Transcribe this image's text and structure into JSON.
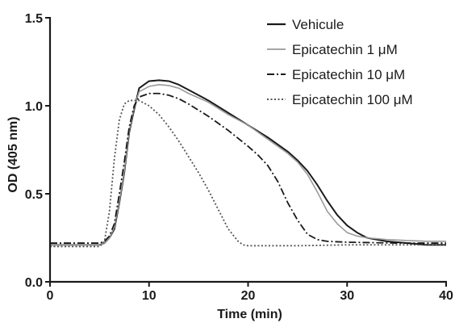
{
  "chart_data": {
    "type": "line",
    "xlabel": "Time (min)",
    "ylabel": "OD (405 nm)",
    "xlim": [
      0,
      40
    ],
    "ylim": [
      0.0,
      1.5
    ],
    "x_ticks": [
      0,
      10,
      20,
      30,
      40
    ],
    "y_ticks": [
      0.0,
      0.5,
      1.0,
      1.5
    ],
    "x_tick_labels": [
      "0",
      "10",
      "20",
      "30",
      "40"
    ],
    "y_tick_labels": [
      "0.0",
      "0.5",
      "1.0",
      "1.5"
    ],
    "grid": false,
    "legend_position": "top-right",
    "series": [
      {
        "name": "Vehicule",
        "color": "#1a1a1a",
        "dash": "solid",
        "width": 2.0,
        "points": [
          [
            0,
            0.21
          ],
          [
            5,
            0.21
          ],
          [
            5.5,
            0.22
          ],
          [
            6,
            0.25
          ],
          [
            6.5,
            0.3
          ],
          [
            7,
            0.45
          ],
          [
            7.5,
            0.62
          ],
          [
            8,
            0.85
          ],
          [
            8.5,
            0.98
          ],
          [
            9,
            1.1
          ],
          [
            10,
            1.14
          ],
          [
            11,
            1.145
          ],
          [
            12,
            1.14
          ],
          [
            13,
            1.12
          ],
          [
            14,
            1.09
          ],
          [
            16,
            1.03
          ],
          [
            18,
            0.96
          ],
          [
            20,
            0.89
          ],
          [
            22,
            0.82
          ],
          [
            24,
            0.74
          ],
          [
            25,
            0.69
          ],
          [
            26,
            0.63
          ],
          [
            27,
            0.55
          ],
          [
            28,
            0.46
          ],
          [
            29,
            0.38
          ],
          [
            30,
            0.32
          ],
          [
            31,
            0.28
          ],
          [
            32,
            0.25
          ],
          [
            34,
            0.23
          ],
          [
            36,
            0.22
          ],
          [
            38,
            0.21
          ],
          [
            40,
            0.21
          ]
        ]
      },
      {
        "name": "Epicatechin 1 μM",
        "color": "#9a9a9a",
        "dash": "solid",
        "width": 1.6,
        "points": [
          [
            0,
            0.21
          ],
          [
            5,
            0.21
          ],
          [
            5.5,
            0.22
          ],
          [
            6,
            0.25
          ],
          [
            6.5,
            0.31
          ],
          [
            7,
            0.46
          ],
          [
            7.5,
            0.63
          ],
          [
            8,
            0.86
          ],
          [
            8.5,
            0.99
          ],
          [
            9,
            1.08
          ],
          [
            10,
            1.11
          ],
          [
            11,
            1.12
          ],
          [
            12,
            1.115
          ],
          [
            13,
            1.1
          ],
          [
            14,
            1.07
          ],
          [
            16,
            1.02
          ],
          [
            18,
            0.95
          ],
          [
            20,
            0.89
          ],
          [
            22,
            0.81
          ],
          [
            24,
            0.73
          ],
          [
            25,
            0.68
          ],
          [
            26,
            0.61
          ],
          [
            27,
            0.51
          ],
          [
            28,
            0.4
          ],
          [
            29,
            0.33
          ],
          [
            30,
            0.28
          ],
          [
            31,
            0.26
          ],
          [
            32,
            0.25
          ],
          [
            34,
            0.24
          ],
          [
            36,
            0.235
          ],
          [
            38,
            0.23
          ],
          [
            40,
            0.23
          ]
        ]
      },
      {
        "name": "Epicatechin 10 μM",
        "color": "#1a1a1a",
        "dash": "dashdot",
        "width": 1.8,
        "points": [
          [
            0,
            0.22
          ],
          [
            5,
            0.22
          ],
          [
            5.5,
            0.23
          ],
          [
            6,
            0.26
          ],
          [
            6.5,
            0.33
          ],
          [
            7,
            0.5
          ],
          [
            7.5,
            0.68
          ],
          [
            8,
            0.88
          ],
          [
            8.5,
            1.0
          ],
          [
            9,
            1.05
          ],
          [
            10,
            1.07
          ],
          [
            11,
            1.07
          ],
          [
            12,
            1.06
          ],
          [
            13,
            1.04
          ],
          [
            14,
            1.01
          ],
          [
            16,
            0.94
          ],
          [
            18,
            0.86
          ],
          [
            20,
            0.77
          ],
          [
            21,
            0.72
          ],
          [
            22,
            0.66
          ],
          [
            23,
            0.57
          ],
          [
            24,
            0.45
          ],
          [
            25,
            0.35
          ],
          [
            26,
            0.27
          ],
          [
            27,
            0.24
          ],
          [
            28,
            0.23
          ],
          [
            30,
            0.225
          ],
          [
            35,
            0.22
          ],
          [
            40,
            0.22
          ]
        ]
      },
      {
        "name": "Epicatechin 100 μM",
        "color": "#555555",
        "dash": "dotted",
        "width": 1.8,
        "points": [
          [
            0,
            0.2
          ],
          [
            5,
            0.2
          ],
          [
            5.5,
            0.23
          ],
          [
            6,
            0.4
          ],
          [
            6.5,
            0.7
          ],
          [
            7,
            0.92
          ],
          [
            7.5,
            1.01
          ],
          [
            8,
            1.03
          ],
          [
            9,
            1.03
          ],
          [
            10,
            1.0
          ],
          [
            11,
            0.95
          ],
          [
            12,
            0.88
          ],
          [
            13,
            0.8
          ],
          [
            14,
            0.71
          ],
          [
            15,
            0.62
          ],
          [
            16,
            0.52
          ],
          [
            17,
            0.41
          ],
          [
            18,
            0.3
          ],
          [
            19,
            0.23
          ],
          [
            19.5,
            0.21
          ],
          [
            20,
            0.205
          ],
          [
            25,
            0.205
          ],
          [
            30,
            0.21
          ],
          [
            35,
            0.21
          ],
          [
            40,
            0.21
          ]
        ]
      }
    ]
  }
}
